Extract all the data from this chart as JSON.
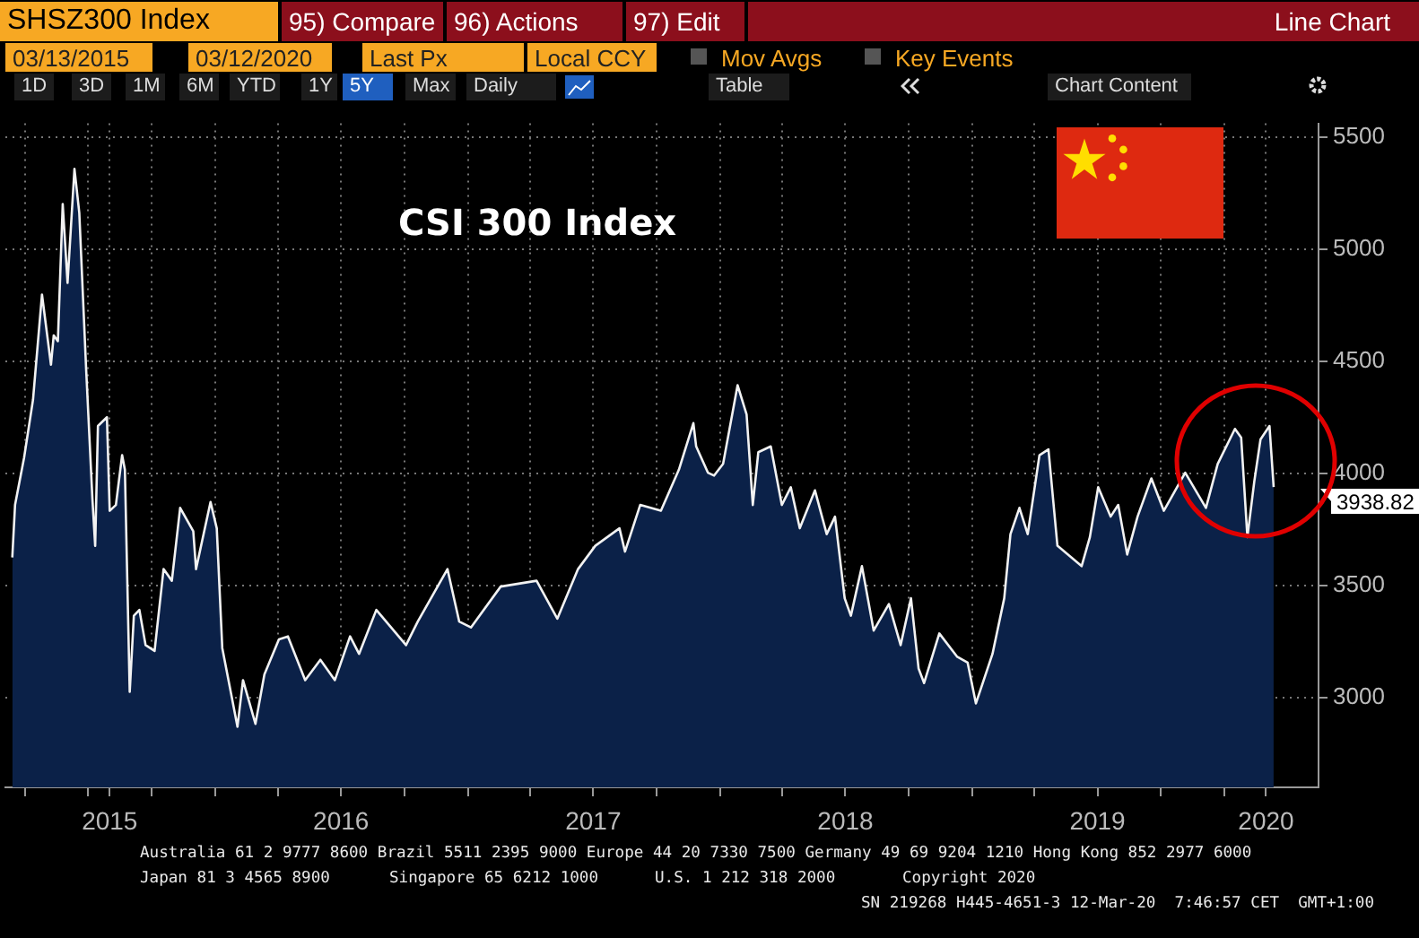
{
  "chart_data": {
    "type": "area",
    "title": "CSI 300 Index",
    "x": [
      "2015-03-13",
      "2015-03-17",
      "2015-03-30",
      "2015-04-12",
      "2015-04-25",
      "2015-05-08",
      "2015-05-12",
      "2015-05-18",
      "2015-05-25",
      "2015-06-01",
      "2015-06-11",
      "2015-06-18",
      "2015-06-28",
      "2015-07-07",
      "2015-07-11",
      "2015-07-15",
      "2015-07-28",
      "2015-08-01",
      "2015-08-10",
      "2015-08-19",
      "2015-08-23",
      "2015-08-30",
      "2015-09-05",
      "2015-09-13",
      "2015-09-22",
      "2015-10-05",
      "2015-10-18",
      "2015-10-30",
      "2015-11-11",
      "2015-11-30",
      "2015-12-04",
      "2015-12-25",
      "2016-01-03",
      "2016-01-11",
      "2016-02-02",
      "2016-02-10",
      "2016-02-28",
      "2016-03-12",
      "2016-04-02",
      "2016-04-15",
      "2016-05-10",
      "2016-06-01",
      "2016-06-22",
      "2016-07-14",
      "2016-07-27",
      "2016-08-21",
      "2016-10-03",
      "2016-10-20",
      "2016-12-02",
      "2016-12-19",
      "2017-01-05",
      "2017-02-17",
      "2017-04-10",
      "2017-05-10",
      "2017-06-09",
      "2017-07-04",
      "2017-08-08",
      "2017-08-16",
      "2017-09-07",
      "2017-10-07",
      "2017-11-02",
      "2017-11-23",
      "2017-11-27",
      "2017-12-14",
      "2017-12-23",
      "2018-01-05",
      "2018-01-26",
      "2018-02-08",
      "2018-02-17",
      "2018-02-25",
      "2018-03-15",
      "2018-03-31",
      "2018-04-13",
      "2018-04-26",
      "2018-05-18",
      "2018-06-04",
      "2018-06-16",
      "2018-06-30",
      "2018-07-09",
      "2018-07-25",
      "2018-08-11",
      "2018-09-02",
      "2018-09-19",
      "2018-10-04",
      "2018-10-15",
      "2018-10-23",
      "2018-11-14",
      "2018-12-10",
      "2018-12-25",
      "2019-01-06",
      "2019-01-30",
      "2019-02-16",
      "2019-02-25",
      "2019-03-10",
      "2019-03-22",
      "2019-04-08",
      "2019-04-21",
      "2019-05-04",
      "2019-06-08",
      "2019-06-20",
      "2019-07-02",
      "2019-07-20",
      "2019-07-31",
      "2019-08-13",
      "2019-08-28",
      "2019-09-17",
      "2019-10-05",
      "2019-11-05",
      "2019-12-05",
      "2019-12-22",
      "2020-01-16",
      "2020-01-25",
      "2020-02-03",
      "2020-02-13",
      "2020-02-22",
      "2020-03-06",
      "2020-03-12"
    ],
    "series": [
      {
        "color": "#0b2148",
        "values": [
          3625,
          3859,
          4068,
          4328,
          4797,
          4484,
          4615,
          4589,
          5200,
          4849,
          5357,
          5161,
          4458,
          3885,
          3677,
          4211,
          4250,
          3833,
          3859,
          4081,
          4016,
          3026,
          3365,
          3391,
          3234,
          3208,
          3573,
          3521,
          3846,
          3742,
          3573,
          3872,
          3755,
          3221,
          2870,
          3078,
          2883,
          3104,
          3260,
          3273,
          3078,
          3169,
          3078,
          3273,
          3195,
          3391,
          3234,
          3339,
          3573,
          3339,
          3313,
          3495,
          3521,
          3352,
          3573,
          3677,
          3755,
          3651,
          3859,
          3833,
          4016,
          4224,
          4120,
          4003,
          3990,
          4042,
          4393,
          4263,
          3859,
          4094,
          4120,
          3859,
          3938,
          3755,
          3924,
          3729,
          3807,
          3443,
          3365,
          3586,
          3299,
          3417,
          3234,
          3443,
          3130,
          3065,
          3286,
          3182,
          3156,
          2974,
          3195,
          3443,
          3729,
          3846,
          3729,
          4081,
          4107,
          3677,
          3586,
          3716,
          3938,
          3807,
          3859,
          3638,
          3807,
          3977,
          3833,
          4003,
          3846,
          4042,
          4198,
          4159,
          3716,
          3964,
          4151,
          4211,
          3938.82
        ]
      }
    ],
    "xlim": [
      "2015-03-03",
      "2020-05-16"
    ],
    "xticks": [
      {
        "value": "2015-04-01",
        "label": null
      },
      {
        "value": "2015-07-01",
        "label": null
      },
      {
        "value": "2015-08-01",
        "label": "2015"
      },
      {
        "value": "2015-10-01",
        "label": null
      },
      {
        "value": "2016-01-01",
        "label": null
      },
      {
        "value": "2016-04-01",
        "label": null
      },
      {
        "value": "2016-07-01",
        "label": "2016"
      },
      {
        "value": "2016-10-01",
        "label": null
      },
      {
        "value": "2017-01-01",
        "label": null
      },
      {
        "value": "2017-04-01",
        "label": null
      },
      {
        "value": "2017-07-01",
        "label": "2017"
      },
      {
        "value": "2017-10-01",
        "label": null
      },
      {
        "value": "2018-01-01",
        "label": null
      },
      {
        "value": "2018-04-01",
        "label": null
      },
      {
        "value": "2018-07-01",
        "label": "2018"
      },
      {
        "value": "2018-10-01",
        "label": null
      },
      {
        "value": "2019-01-01",
        "label": null
      },
      {
        "value": "2019-04-01",
        "label": null
      },
      {
        "value": "2019-07-01",
        "label": "2019"
      },
      {
        "value": "2019-10-01",
        "label": null
      },
      {
        "value": "2020-01-01",
        "label": null
      },
      {
        "value": "2020-03-01",
        "label": "2020"
      }
    ],
    "ylim": [
      2600,
      5560
    ],
    "yticks": [
      3000,
      3500,
      4000,
      4500,
      5000,
      5500
    ],
    "grid": true,
    "legend": false,
    "marker": "none",
    "line_style": "solid",
    "annotations": [
      "SHSZ300 Index",
      "95) Compare",
      "96) Actions",
      "97) Edit",
      "Line Chart",
      "03/13/2015",
      "03/12/2020",
      "Last Px",
      "Local CCY",
      "Mov Avgs",
      "Key Events",
      "1D",
      "3D",
      "1M",
      "6M",
      "YTD",
      "1Y",
      "5Y",
      "Max",
      "Daily",
      "Table",
      "Chart Content",
      "Australia 61 2 9777 8600 Brazil 5511 2395 9000 Europe 44 20 7330 7500 Germany 49 69 9204 1210 Hong Kong 852 2977 6000",
      "Japan 81 3 4565 8900",
      "Singapore 65 6212 1000",
      "U.S. 1 212 318 2000",
      "Copyright 2020",
      "SN 219268 H445-4651-3 12-Mar-20  7:46:57 CET  GMT+1:00",
      {
        "text": "3938.82",
        "x": "2020-03-12",
        "y": 3938.82
      }
    ]
  }
}
